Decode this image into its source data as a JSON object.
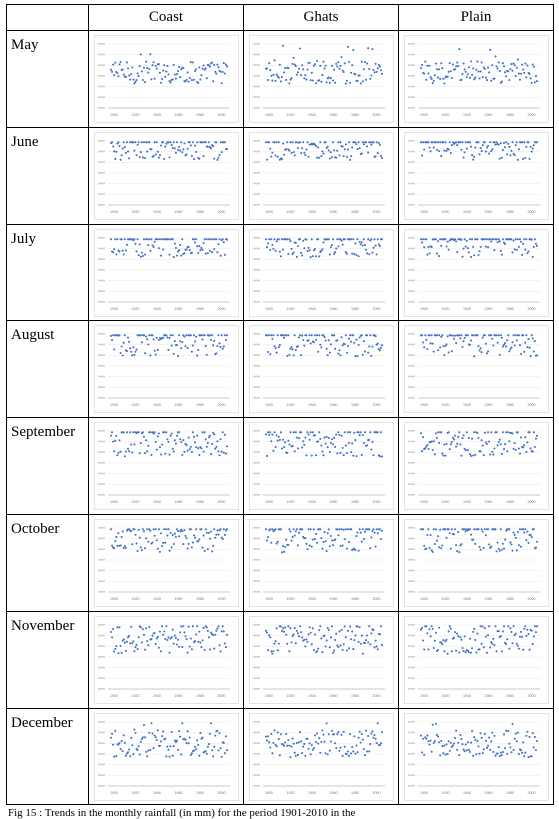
{
  "table": {
    "columns": [
      "Coast",
      "Ghats",
      "Plain"
    ],
    "rows": [
      "May",
      "June",
      "July",
      "August",
      "September",
      "October",
      "November",
      "December"
    ]
  },
  "caption": "Fig 15 : Trends in the monthly rainfall (in mm) for the period 1901-2010 in the",
  "chart_data": {
    "type": "scatter",
    "grid": "scatter plots arranged by month (rows) and region (columns)",
    "series_color": "#4472c4",
    "x_tick_labels": [
      "1900",
      "1920",
      "1940",
      "1960",
      "1980",
      "2000"
    ]
  }
}
